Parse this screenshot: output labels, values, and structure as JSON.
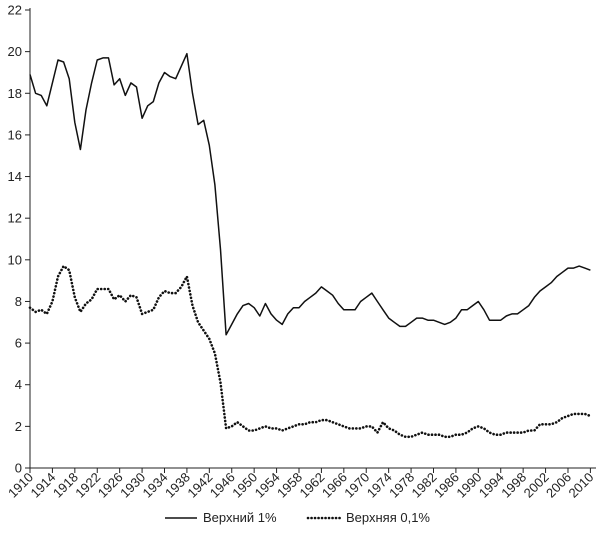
{
  "chart_data": {
    "type": "line",
    "title": "",
    "xlabel": "",
    "ylabel": "",
    "xlim": [
      1910,
      2011
    ],
    "ylim": [
      0,
      22
    ],
    "grid": false,
    "legend_position": "bottom",
    "y_ticks": [
      0,
      2,
      4,
      6,
      8,
      10,
      12,
      14,
      16,
      18,
      20,
      22
    ],
    "x_ticks": [
      1910,
      1914,
      1918,
      1922,
      1926,
      1930,
      1934,
      1938,
      1942,
      1946,
      1950,
      1954,
      1958,
      1962,
      1966,
      1970,
      1974,
      1978,
      1982,
      1986,
      1990,
      1994,
      1998,
      2002,
      2006,
      2010
    ],
    "series": [
      {
        "name": "Верхний 1%",
        "style": "solid",
        "color": "#111111",
        "points": [
          [
            1910,
            18.9
          ],
          [
            1911,
            18.0
          ],
          [
            1912,
            17.9
          ],
          [
            1913,
            17.4
          ],
          [
            1914,
            18.5
          ],
          [
            1915,
            19.6
          ],
          [
            1916,
            19.5
          ],
          [
            1917,
            18.7
          ],
          [
            1918,
            16.6
          ],
          [
            1919,
            15.3
          ],
          [
            1920,
            17.2
          ],
          [
            1921,
            18.5
          ],
          [
            1922,
            19.6
          ],
          [
            1923,
            19.7
          ],
          [
            1924,
            19.7
          ],
          [
            1925,
            18.4
          ],
          [
            1926,
            18.7
          ],
          [
            1927,
            17.9
          ],
          [
            1928,
            18.5
          ],
          [
            1929,
            18.3
          ],
          [
            1930,
            16.8
          ],
          [
            1931,
            17.4
          ],
          [
            1932,
            17.6
          ],
          [
            1933,
            18.5
          ],
          [
            1934,
            19.0
          ],
          [
            1935,
            18.8
          ],
          [
            1936,
            18.7
          ],
          [
            1937,
            19.3
          ],
          [
            1938,
            19.9
          ],
          [
            1939,
            18.0
          ],
          [
            1940,
            16.5
          ],
          [
            1941,
            16.7
          ],
          [
            1942,
            15.5
          ],
          [
            1943,
            13.6
          ],
          [
            1944,
            10.5
          ],
          [
            1945,
            6.4
          ],
          [
            1946,
            6.9
          ],
          [
            1947,
            7.4
          ],
          [
            1948,
            7.8
          ],
          [
            1949,
            7.9
          ],
          [
            1950,
            7.7
          ],
          [
            1951,
            7.3
          ],
          [
            1952,
            7.9
          ],
          [
            1953,
            7.4
          ],
          [
            1954,
            7.1
          ],
          [
            1955,
            6.9
          ],
          [
            1956,
            7.4
          ],
          [
            1957,
            7.7
          ],
          [
            1958,
            7.7
          ],
          [
            1959,
            8.0
          ],
          [
            1960,
            8.2
          ],
          [
            1961,
            8.4
          ],
          [
            1962,
            8.7
          ],
          [
            1963,
            8.5
          ],
          [
            1964,
            8.3
          ],
          [
            1965,
            7.9
          ],
          [
            1966,
            7.6
          ],
          [
            1967,
            7.6
          ],
          [
            1968,
            7.6
          ],
          [
            1969,
            8.0
          ],
          [
            1970,
            8.2
          ],
          [
            1971,
            8.4
          ],
          [
            1972,
            8.0
          ],
          [
            1973,
            7.6
          ],
          [
            1974,
            7.2
          ],
          [
            1975,
            7.0
          ],
          [
            1976,
            6.8
          ],
          [
            1977,
            6.8
          ],
          [
            1978,
            7.0
          ],
          [
            1979,
            7.2
          ],
          [
            1980,
            7.2
          ],
          [
            1981,
            7.1
          ],
          [
            1982,
            7.1
          ],
          [
            1983,
            7.0
          ],
          [
            1984,
            6.9
          ],
          [
            1985,
            7.0
          ],
          [
            1986,
            7.2
          ],
          [
            1987,
            7.6
          ],
          [
            1988,
            7.6
          ],
          [
            1989,
            7.8
          ],
          [
            1990,
            8.0
          ],
          [
            1991,
            7.6
          ],
          [
            1992,
            7.1
          ],
          [
            1993,
            7.1
          ],
          [
            1994,
            7.1
          ],
          [
            1995,
            7.3
          ],
          [
            1996,
            7.4
          ],
          [
            1997,
            7.4
          ],
          [
            1998,
            7.6
          ],
          [
            1999,
            7.8
          ],
          [
            2000,
            8.2
          ],
          [
            2001,
            8.5
          ],
          [
            2002,
            8.7
          ],
          [
            2003,
            8.9
          ],
          [
            2004,
            9.2
          ],
          [
            2005,
            9.4
          ],
          [
            2006,
            9.6
          ],
          [
            2007,
            9.6
          ],
          [
            2008,
            9.7
          ],
          [
            2009,
            9.6
          ],
          [
            2010,
            9.5
          ]
        ]
      },
      {
        "name": "Верхняя 0,1%",
        "style": "dotted",
        "color": "#111111",
        "points": [
          [
            1910,
            7.7
          ],
          [
            1911,
            7.5
          ],
          [
            1912,
            7.6
          ],
          [
            1913,
            7.4
          ],
          [
            1914,
            8.0
          ],
          [
            1915,
            9.2
          ],
          [
            1916,
            9.7
          ],
          [
            1917,
            9.5
          ],
          [
            1918,
            8.2
          ],
          [
            1919,
            7.5
          ],
          [
            1920,
            7.9
          ],
          [
            1921,
            8.1
          ],
          [
            1922,
            8.6
          ],
          [
            1923,
            8.6
          ],
          [
            1924,
            8.6
          ],
          [
            1925,
            8.1
          ],
          [
            1926,
            8.3
          ],
          [
            1927,
            8.0
          ],
          [
            1928,
            8.3
          ],
          [
            1929,
            8.2
          ],
          [
            1930,
            7.4
          ],
          [
            1931,
            7.5
          ],
          [
            1932,
            7.6
          ],
          [
            1933,
            8.2
          ],
          [
            1934,
            8.5
          ],
          [
            1935,
            8.4
          ],
          [
            1936,
            8.4
          ],
          [
            1937,
            8.7
          ],
          [
            1938,
            9.2
          ],
          [
            1939,
            7.8
          ],
          [
            1940,
            7.0
          ],
          [
            1941,
            6.6
          ],
          [
            1942,
            6.2
          ],
          [
            1943,
            5.5
          ],
          [
            1944,
            4.1
          ],
          [
            1945,
            1.9
          ],
          [
            1946,
            2.0
          ],
          [
            1947,
            2.2
          ],
          [
            1948,
            2.0
          ],
          [
            1949,
            1.8
          ],
          [
            1950,
            1.8
          ],
          [
            1951,
            1.9
          ],
          [
            1952,
            2.0
          ],
          [
            1953,
            1.9
          ],
          [
            1954,
            1.9
          ],
          [
            1955,
            1.8
          ],
          [
            1956,
            1.9
          ],
          [
            1957,
            2.0
          ],
          [
            1958,
            2.1
          ],
          [
            1959,
            2.1
          ],
          [
            1960,
            2.2
          ],
          [
            1961,
            2.2
          ],
          [
            1962,
            2.3
          ],
          [
            1963,
            2.3
          ],
          [
            1964,
            2.2
          ],
          [
            1965,
            2.1
          ],
          [
            1966,
            2.0
          ],
          [
            1967,
            1.9
          ],
          [
            1968,
            1.9
          ],
          [
            1969,
            1.9
          ],
          [
            1970,
            2.0
          ],
          [
            1971,
            2.0
          ],
          [
            1972,
            1.7
          ],
          [
            1973,
            2.2
          ],
          [
            1974,
            1.9
          ],
          [
            1975,
            1.8
          ],
          [
            1976,
            1.6
          ],
          [
            1977,
            1.5
          ],
          [
            1978,
            1.5
          ],
          [
            1979,
            1.6
          ],
          [
            1980,
            1.7
          ],
          [
            1981,
            1.6
          ],
          [
            1982,
            1.6
          ],
          [
            1983,
            1.6
          ],
          [
            1984,
            1.5
          ],
          [
            1985,
            1.5
          ],
          [
            1986,
            1.6
          ],
          [
            1987,
            1.6
          ],
          [
            1988,
            1.7
          ],
          [
            1989,
            1.9
          ],
          [
            1990,
            2.0
          ],
          [
            1991,
            1.9
          ],
          [
            1992,
            1.7
          ],
          [
            1993,
            1.6
          ],
          [
            1994,
            1.6
          ],
          [
            1995,
            1.7
          ],
          [
            1996,
            1.7
          ],
          [
            1997,
            1.7
          ],
          [
            1998,
            1.7
          ],
          [
            1999,
            1.8
          ],
          [
            2000,
            1.8
          ],
          [
            2001,
            2.1
          ],
          [
            2002,
            2.1
          ],
          [
            2003,
            2.1
          ],
          [
            2004,
            2.2
          ],
          [
            2005,
            2.4
          ],
          [
            2006,
            2.5
          ],
          [
            2007,
            2.6
          ],
          [
            2008,
            2.6
          ],
          [
            2009,
            2.6
          ],
          [
            2010,
            2.5
          ]
        ]
      }
    ]
  }
}
